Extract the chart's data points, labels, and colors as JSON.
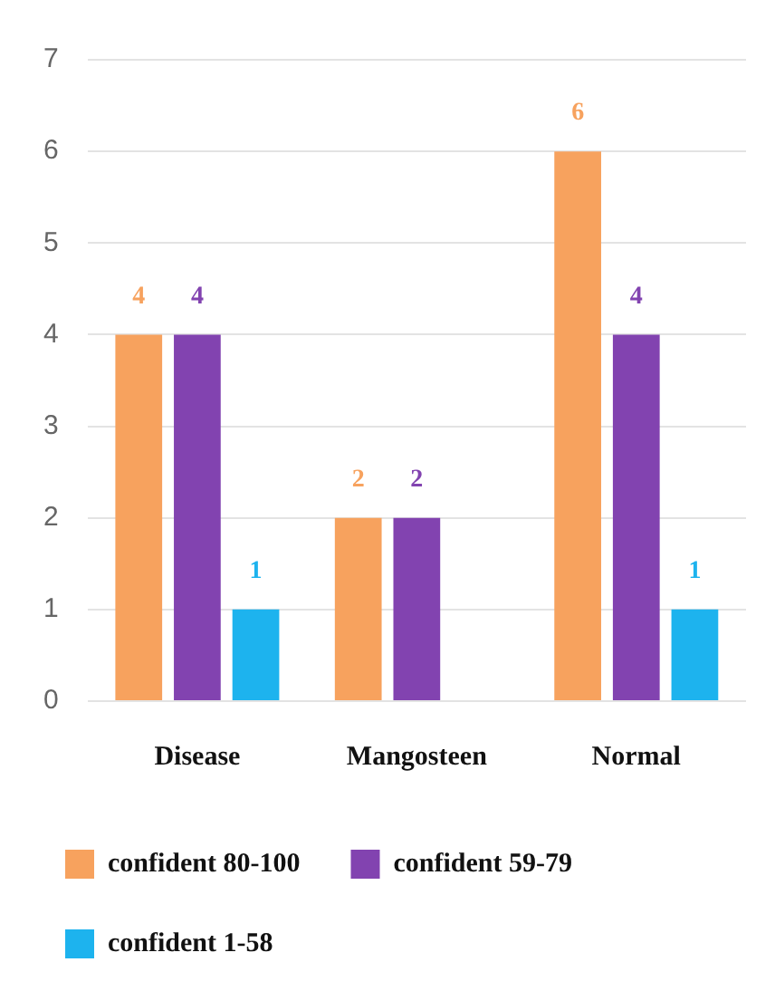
{
  "chart_data": {
    "type": "bar",
    "categories": [
      "Disease",
      "Mangosteen",
      "Normal"
    ],
    "series": [
      {
        "name": "confident 80-100",
        "color": "#f7a25e",
        "values": [
          4,
          2,
          6
        ]
      },
      {
        "name": "confident 59-79",
        "color": "#8243b0",
        "values": [
          4,
          2,
          4
        ]
      },
      {
        "name": "confident 1-58",
        "color": "#1db3ee",
        "values": [
          1,
          null,
          1
        ]
      }
    ],
    "ylim": [
      0,
      7
    ],
    "yticks": [
      0,
      1,
      2,
      3,
      4,
      5,
      6,
      7
    ],
    "grid": "y",
    "legend": "bottom",
    "data_labels": true
  }
}
